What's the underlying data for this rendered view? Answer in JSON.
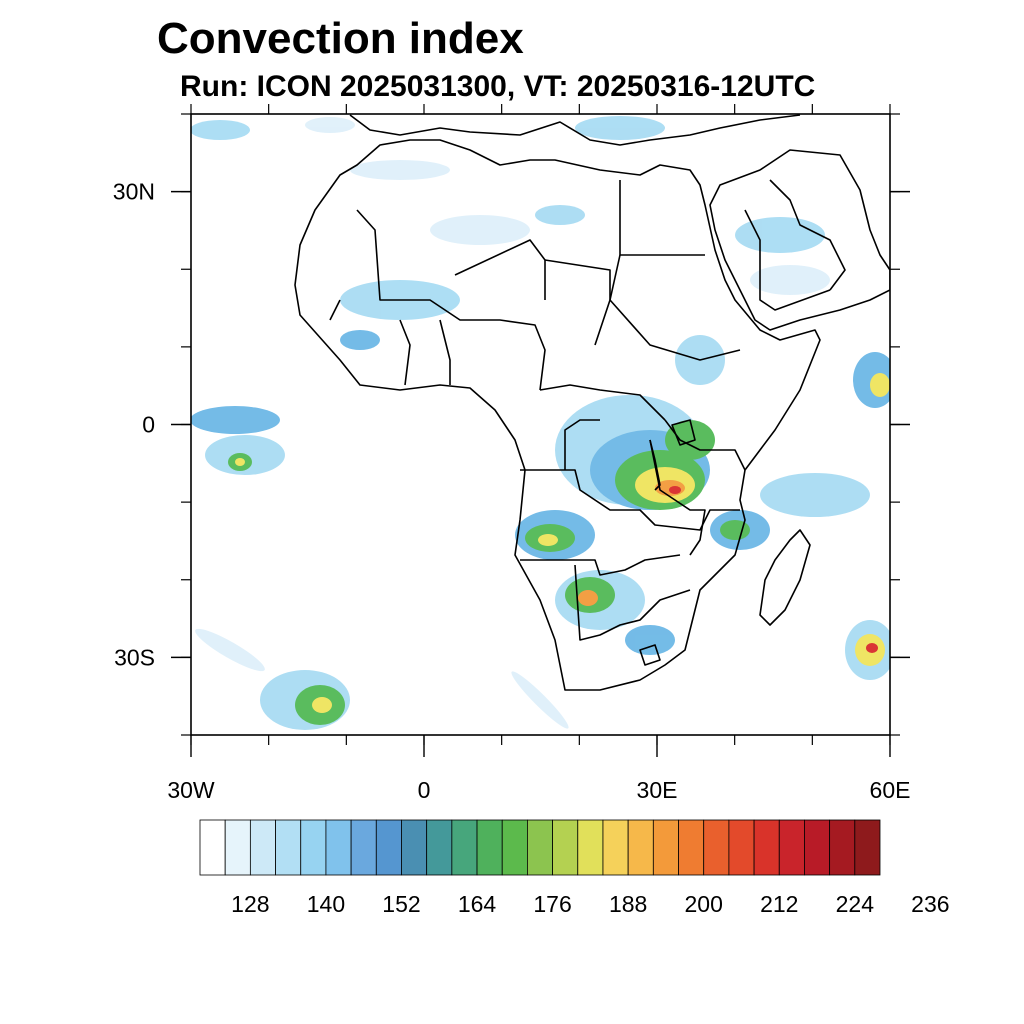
{
  "title": "Convection index",
  "subtitle": "Run: ICON 2025031300,  VT: 20250316-12UTC",
  "map": {
    "extent": {
      "lon_min": -30,
      "lon_max": 60,
      "lat_min": -40,
      "lat_max": 40
    },
    "lat_ticks": [
      {
        "value": 30,
        "label": "30N"
      },
      {
        "value": 0,
        "label": "0"
      },
      {
        "value": -30,
        "label": "30S"
      }
    ],
    "lon_ticks": [
      {
        "value": -30,
        "label": "30W"
      },
      {
        "value": 0,
        "label": "0"
      },
      {
        "value": 30,
        "label": "30E"
      },
      {
        "value": 60,
        "label": "60E"
      }
    ],
    "minor_lat_step": 10,
    "minor_lon_step": 10,
    "land_outline_color": "#000000",
    "field_palette": [
      "#dff0fa",
      "#a9dcf3",
      "#6db8e6",
      "#4aa2a6",
      "#52b956",
      "#efe45c",
      "#f39a3a",
      "#d92b2b",
      "#a01a1a"
    ]
  },
  "colorbar": {
    "colors": [
      "#ffffff",
      "#e6f4fb",
      "#cde9f7",
      "#b2dff4",
      "#97d3f1",
      "#80c2ec",
      "#6aa8de",
      "#5596d0",
      "#4a8fb2",
      "#44999a",
      "#47a67c",
      "#4fb15c",
      "#5cba4c",
      "#8cc44f",
      "#b4d151",
      "#e1e05a",
      "#f5d15a",
      "#f6b84a",
      "#f39a3a",
      "#ef7c31",
      "#e9602d",
      "#e34a2b",
      "#d9332a",
      "#c9242b",
      "#b81b27",
      "#a51a21",
      "#8e1a1c"
    ],
    "tick_labels": [
      "128",
      "140",
      "152",
      "164",
      "176",
      "188",
      "200",
      "212",
      "224",
      "236"
    ],
    "label_start_index": 2,
    "label_step": 3
  }
}
